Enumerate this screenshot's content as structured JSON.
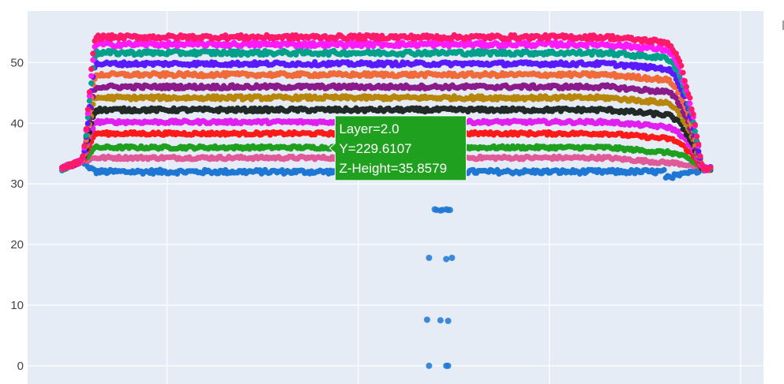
{
  "chart_data": {
    "type": "scatter",
    "title": "",
    "xlabel": "",
    "ylabel": "",
    "ylim": [
      -3,
      58.5
    ],
    "xlim": [
      -3,
      382
    ],
    "yticks": [
      0,
      10,
      20,
      30,
      40,
      50
    ],
    "ytick_labels": [
      "0",
      "10",
      "20",
      "30",
      "40",
      "50"
    ],
    "xgrid": [
      70,
      170,
      270,
      370
    ],
    "grid": true,
    "plot_bg": "#e5ecf6",
    "legend": "right (clipped)",
    "x_start": 15,
    "x_end": 355,
    "series": [
      {
        "color": "#1f77d4",
        "plateau": 32.0,
        "jitter": 0.35,
        "outliers": [
          [
            210,
            25.8
          ],
          [
            211,
            25.7
          ],
          [
            213,
            25.6
          ],
          [
            214,
            25.7
          ],
          [
            216,
            25.8
          ],
          [
            217,
            25.7
          ],
          [
            218,
            25.7
          ],
          [
            207,
            17.8
          ],
          [
            216,
            17.6
          ],
          [
            219,
            17.8
          ],
          [
            206,
            7.6
          ],
          [
            213,
            7.5
          ],
          [
            217,
            7.4
          ],
          [
            207,
            0.0
          ],
          [
            216,
            0.0
          ],
          [
            217,
            0.0
          ]
        ]
      },
      {
        "color": "#e05a9a",
        "plateau": 34.3,
        "jitter": 0.25
      },
      {
        "color": "#1fa01f",
        "plateau": 36.0,
        "jitter": 0.25
      },
      {
        "color": "#ff1a1a",
        "plateau": 38.3,
        "jitter": 0.25
      },
      {
        "color": "#e01ff0",
        "plateau": 40.2,
        "jitter": 0.25
      },
      {
        "color": "#222a28",
        "plateau": 42.2,
        "jitter": 0.3
      },
      {
        "color": "#b8860b",
        "plateau": 44.2,
        "jitter": 0.3
      },
      {
        "color": "#8b1a8b",
        "plateau": 46.0,
        "jitter": 0.3
      },
      {
        "color": "#f06a3a",
        "plateau": 48.0,
        "jitter": 0.3
      },
      {
        "color": "#5a1aff",
        "plateau": 49.8,
        "jitter": 0.3
      },
      {
        "color": "#00a08a",
        "plateau": 51.6,
        "jitter": 0.35
      },
      {
        "color": "#ff1aff",
        "plateau": 53.0,
        "jitter": 0.35
      },
      {
        "color": "#ff1a6a",
        "plateau": 54.2,
        "jitter": 0.35
      }
    ]
  },
  "hover": {
    "series_index": 2,
    "x": 155,
    "y": 35.9,
    "lines": [
      "Layer=2.0",
      "Y=229.6107",
      "Z-Height=35.8579"
    ],
    "bg": "#1fa01f"
  }
}
